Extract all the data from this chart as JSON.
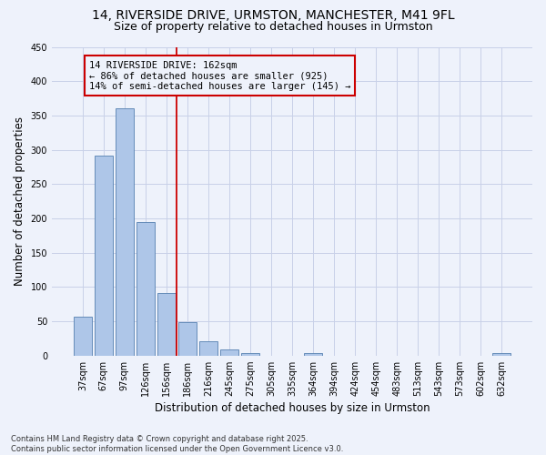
{
  "title1": "14, RIVERSIDE DRIVE, URMSTON, MANCHESTER, M41 9FL",
  "title2": "Size of property relative to detached houses in Urmston",
  "xlabel": "Distribution of detached houses by size in Urmston",
  "ylabel": "Number of detached properties",
  "bar_labels": [
    "37sqm",
    "67sqm",
    "97sqm",
    "126sqm",
    "156sqm",
    "186sqm",
    "216sqm",
    "245sqm",
    "275sqm",
    "305sqm",
    "335sqm",
    "364sqm",
    "394sqm",
    "424sqm",
    "454sqm",
    "483sqm",
    "513sqm",
    "543sqm",
    "573sqm",
    "602sqm",
    "632sqm"
  ],
  "bar_values": [
    57,
    291,
    360,
    194,
    91,
    49,
    21,
    9,
    4,
    0,
    0,
    4,
    0,
    0,
    0,
    0,
    0,
    0,
    0,
    0,
    3
  ],
  "bar_color": "#aec6e8",
  "bar_edge_color": "#5580b0",
  "vline_x": 4.5,
  "vline_color": "#cc0000",
  "annotation_text": "14 RIVERSIDE DRIVE: 162sqm\n← 86% of detached houses are smaller (925)\n14% of semi-detached houses are larger (145) →",
  "box_color": "#cc0000",
  "ylim": [
    0,
    450
  ],
  "footnote": "Contains HM Land Registry data © Crown copyright and database right 2025.\nContains public sector information licensed under the Open Government Licence v3.0.",
  "background_color": "#eef2fb",
  "grid_color": "#c8d0e8",
  "title_fontsize": 10,
  "subtitle_fontsize": 9,
  "axis_label_fontsize": 8.5,
  "tick_fontsize": 7,
  "annotation_fontsize": 7.5,
  "footnote_fontsize": 6
}
